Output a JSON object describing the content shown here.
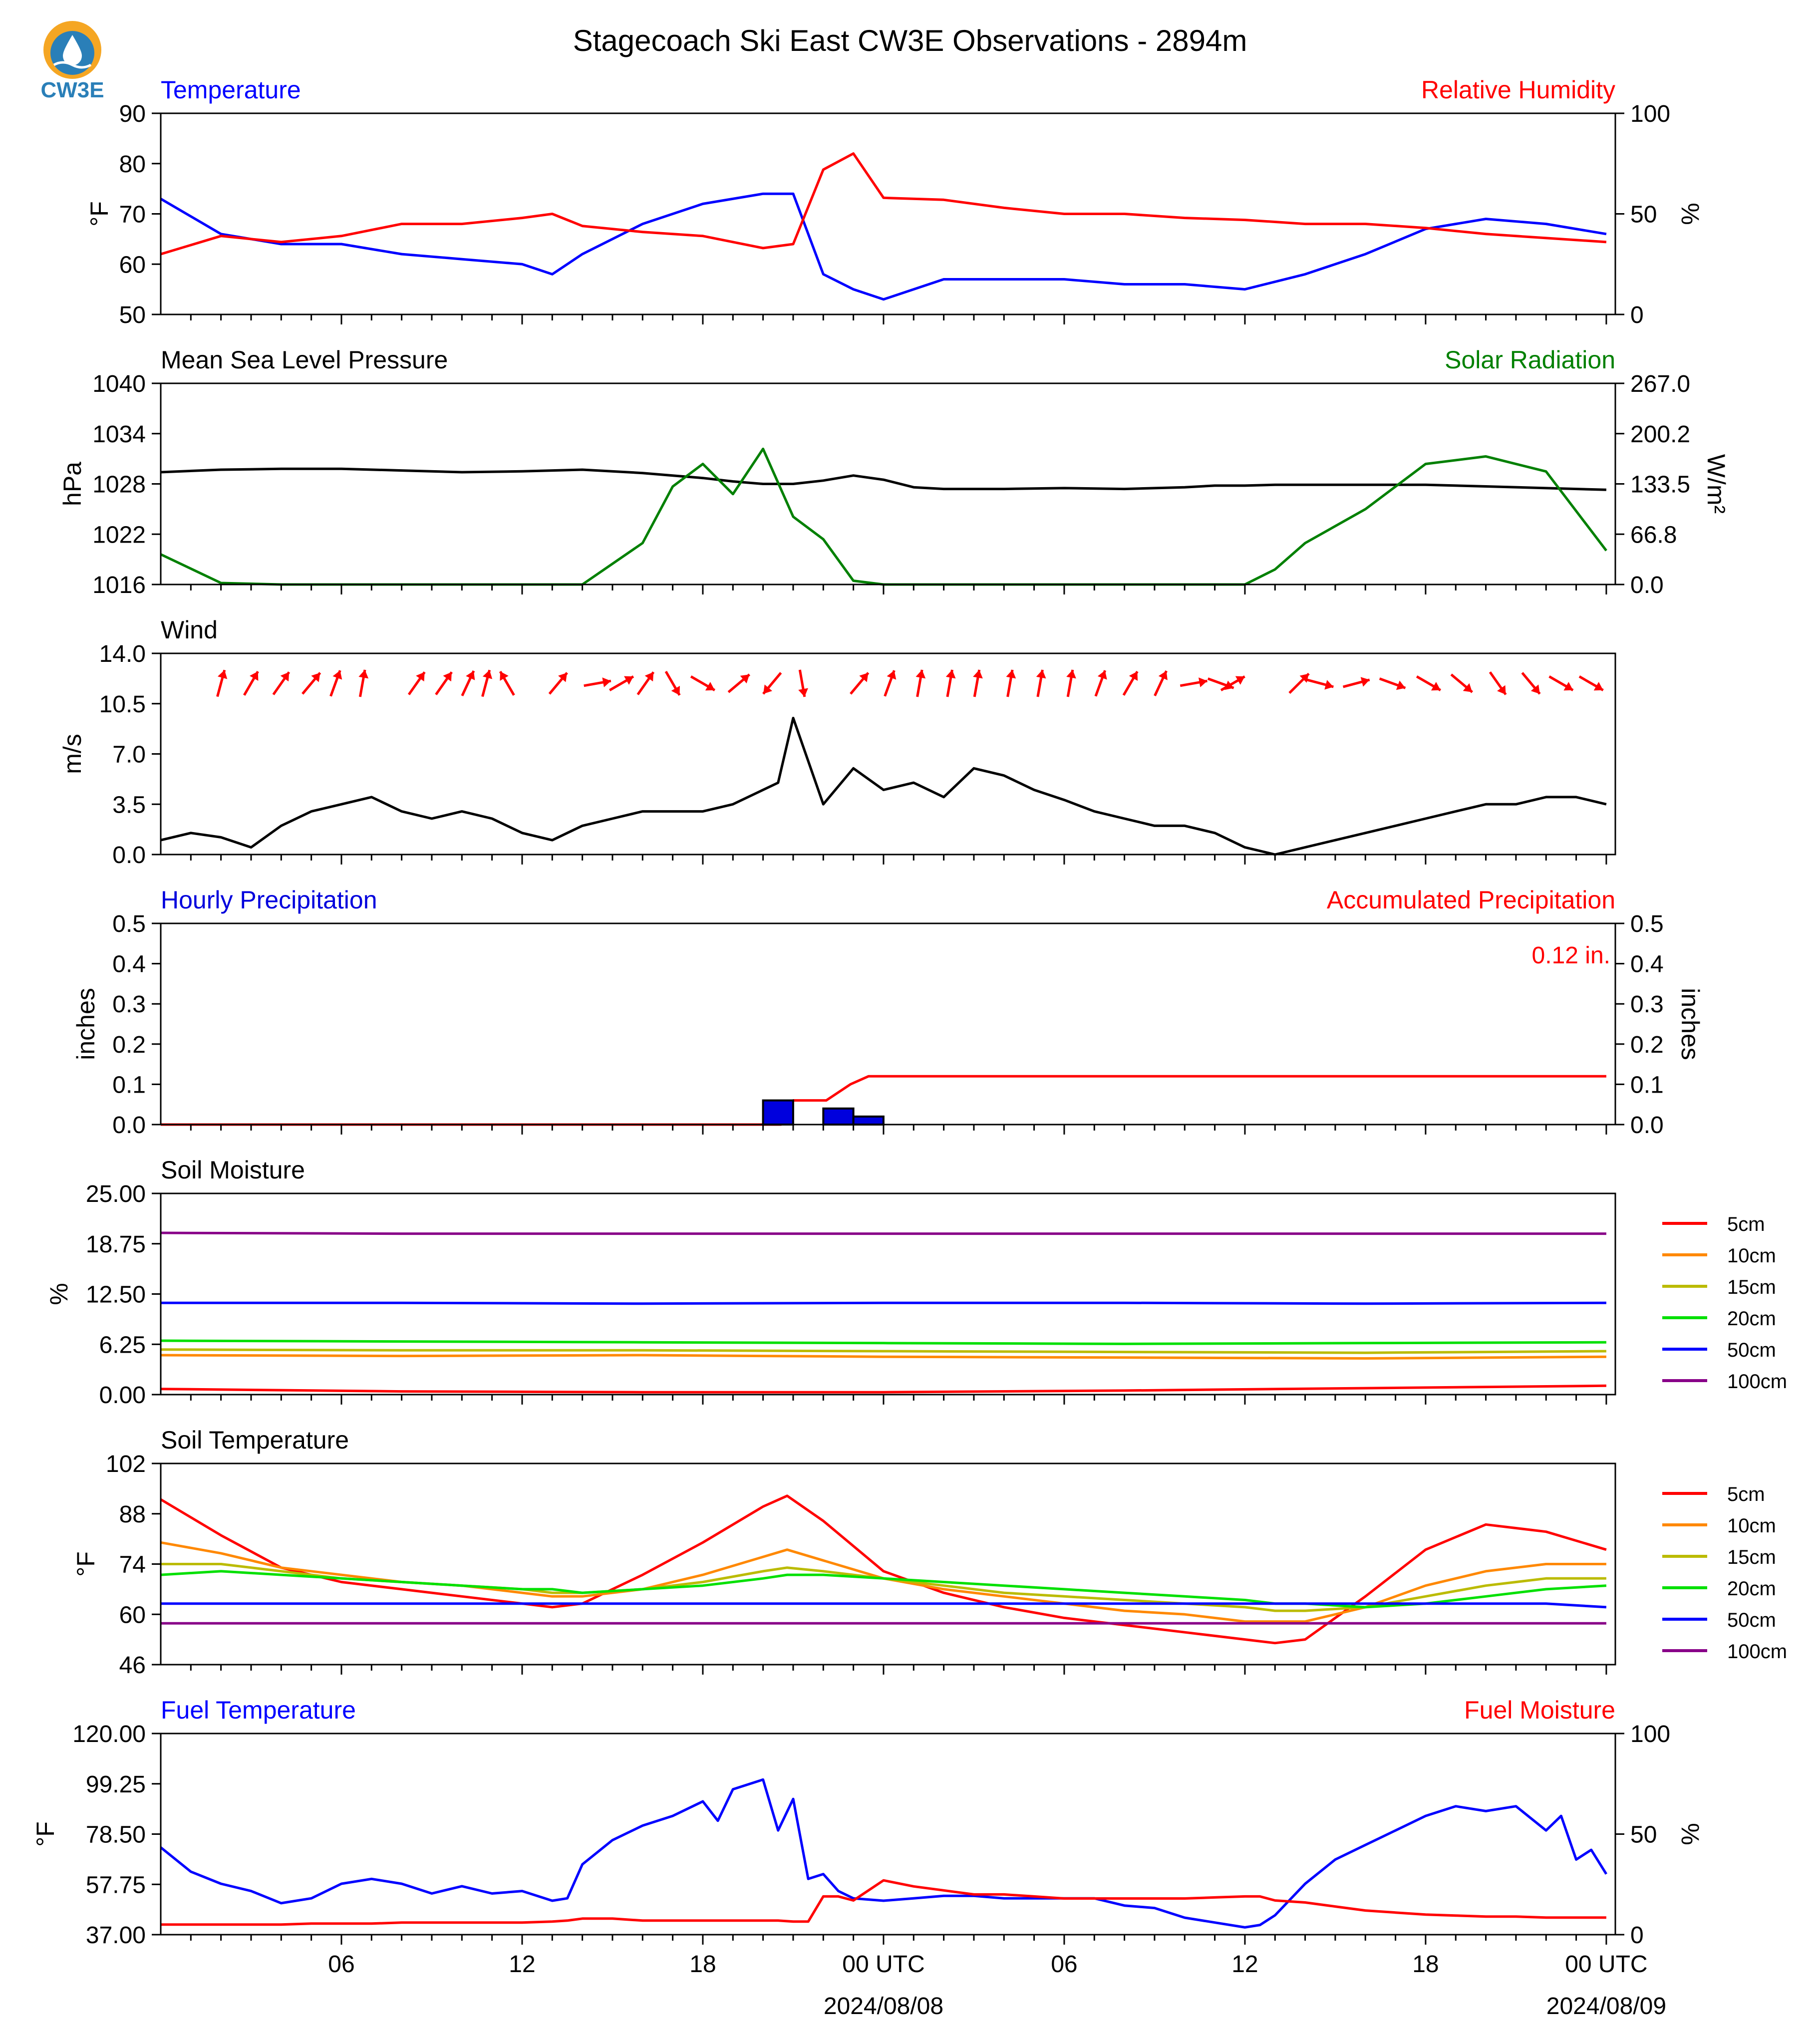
{
  "title": "Stagecoach Ski East CW3E Observations - 2894m",
  "logo": {
    "text": "CW3E",
    "colors": [
      "#f5a623",
      "#2a7fb8"
    ]
  },
  "time_axis": {
    "ticks": [
      "06",
      "12",
      "18",
      "00 UTC",
      "06",
      "12",
      "18",
      "00 UTC"
    ],
    "dates": [
      "2024/08/08",
      "2024/08/09"
    ]
  },
  "chart_data": [
    {
      "type": "line",
      "title_left": "Temperature",
      "title_right": "Relative Humidity",
      "ylabel": "°F",
      "ylabel_right": "%",
      "ylim": [
        50,
        90
      ],
      "ylim_right": [
        0,
        100
      ],
      "yticks": [
        "50",
        "60",
        "70",
        "80",
        "90"
      ],
      "yticks_right": [
        "0",
        "50",
        "100"
      ],
      "colors": {
        "left": "#0000ff",
        "right": "#ff0000"
      },
      "x": [
        0,
        2,
        4,
        6,
        8,
        10,
        12,
        13,
        14,
        16,
        18,
        20,
        21,
        22,
        23,
        24,
        26,
        28,
        30,
        32,
        34,
        36,
        38,
        40,
        42,
        44,
        46,
        48
      ],
      "series": [
        {
          "name": "Temperature",
          "axis": "left",
          "values": [
            73,
            66,
            64,
            64,
            62,
            61,
            60,
            58,
            62,
            68,
            72,
            74,
            74,
            58,
            55,
            53,
            57,
            57,
            57,
            56,
            56,
            55,
            58,
            62,
            67,
            69,
            68,
            66
          ]
        },
        {
          "name": "Relative Humidity",
          "axis": "right",
          "values": [
            30,
            39,
            36,
            39,
            45,
            45,
            48,
            50,
            44,
            41,
            39,
            33,
            35,
            72,
            80,
            58,
            57,
            53,
            50,
            50,
            48,
            47,
            45,
            45,
            43,
            40,
            38,
            36
          ]
        }
      ]
    },
    {
      "type": "line",
      "title_left": "Mean Sea Level Pressure",
      "title_right": "Solar Radiation",
      "ylabel": "hPa",
      "ylabel_right": "W/m²",
      "ylim": [
        1016,
        1040
      ],
      "ylim_right": [
        0,
        267
      ],
      "yticks": [
        "1016",
        "1022",
        "1028",
        "1034",
        "1040"
      ],
      "yticks_right": [
        "0.0",
        "66.8",
        "133.5",
        "200.2",
        "267.0"
      ],
      "colors": {
        "left": "#000000",
        "right": "#008000"
      },
      "x": [
        0,
        2,
        4,
        6,
        8,
        10,
        12,
        14,
        16,
        17,
        18,
        19,
        20,
        21,
        22,
        23,
        24,
        25,
        26,
        28,
        30,
        32,
        34,
        35,
        36,
        37,
        38,
        40,
        42,
        44,
        46,
        48
      ],
      "series": [
        {
          "name": "Mean Sea Level Pressure",
          "axis": "left",
          "values": [
            1029.4,
            1029.7,
            1029.8,
            1029.8,
            1029.6,
            1029.4,
            1029.5,
            1029.7,
            1029.3,
            1029.0,
            1028.7,
            1028.3,
            1028.0,
            1028.0,
            1028.4,
            1029.0,
            1028.5,
            1027.6,
            1027.4,
            1027.4,
            1027.5,
            1027.4,
            1027.6,
            1027.8,
            1027.8,
            1027.9,
            1027.9,
            1027.9,
            1027.9,
            1027.7,
            1027.5,
            1027.3
          ]
        },
        {
          "name": "Solar Radiation",
          "axis": "right",
          "values": [
            40,
            2,
            0,
            0,
            0,
            0,
            0,
            0,
            55,
            130,
            160,
            120,
            180,
            90,
            60,
            5,
            0,
            0,
            0,
            0,
            0,
            0,
            0,
            0,
            0,
            20,
            55,
            100,
            160,
            170,
            150,
            45
          ]
        }
      ]
    },
    {
      "type": "line",
      "title_left": "Wind",
      "ylabel": "m/s",
      "ylim": [
        0,
        14
      ],
      "yticks": [
        "0.0",
        "3.5",
        "7.0",
        "10.5",
        "14.0"
      ],
      "colors": {
        "left": "#000000",
        "arrows": "#ff0000"
      },
      "x": [
        0,
        1,
        2,
        3,
        4,
        5,
        6,
        7,
        8,
        9,
        10,
        11,
        12,
        13,
        14,
        15,
        16,
        17,
        18,
        19,
        20,
        20.5,
        21,
        22,
        23,
        24,
        25,
        26,
        27,
        28,
        29,
        30,
        31,
        32,
        33,
        34,
        35,
        36,
        37,
        38,
        39,
        40,
        41,
        42,
        43,
        44,
        45,
        46,
        47,
        48
      ],
      "series": [
        {
          "name": "Wind Speed",
          "axis": "left",
          "values": [
            1.0,
            1.5,
            1.2,
            0.5,
            2.0,
            3.0,
            3.5,
            4.0,
            3.0,
            2.5,
            3.0,
            2.5,
            1.5,
            1.0,
            2.0,
            2.5,
            3.0,
            3.0,
            3.0,
            3.5,
            4.5,
            5.0,
            9.5,
            3.5,
            6.0,
            4.5,
            5.0,
            4.0,
            6.0,
            5.5,
            4.5,
            3.8,
            3.0,
            2.5,
            2.0,
            2.0,
            1.5,
            0.5,
            0.0,
            0.5,
            1.0,
            1.5,
            2.0,
            2.5,
            3.0,
            3.5,
            3.5,
            4.0,
            4.0,
            3.5
          ]
        }
      ],
      "arrows": {
        "x": [
          2,
          3,
          4,
          5,
          5.8,
          6.7,
          8.5,
          9.4,
          10.2,
          10.8,
          11.5,
          13.2,
          14.5,
          15.3,
          16.1,
          17,
          18,
          19.2,
          20.3,
          21.3,
          23.2,
          24.2,
          25.2,
          26.2,
          27.1,
          28.2,
          29.2,
          30.2,
          31.2,
          32.2,
          33.2,
          34.3,
          35.2,
          35.6,
          37.8,
          38.5,
          39.7,
          40.9,
          42.1,
          43.2,
          44.4,
          45.5,
          46.5,
          47.5
        ],
        "dir_deg": [
          15,
          30,
          35,
          40,
          20,
          10,
          35,
          35,
          25,
          15,
          330,
          40,
          80,
          60,
          35,
          150,
          120,
          50,
          220,
          170,
          40,
          20,
          10,
          10,
          10,
          10,
          10,
          10,
          20,
          30,
          25,
          80,
          110,
          60,
          45,
          105,
          75,
          110,
          120,
          130,
          145,
          140,
          120,
          120
        ]
      }
    },
    {
      "type": "bar",
      "title_left": "Hourly Precipitation",
      "title_right": "Accumulated Precipitation",
      "annotation": "0.12 in.",
      "ylabel": "inches",
      "ylabel_right": "inches",
      "ylim": [
        0,
        0.5
      ],
      "ylim_right": [
        0,
        0.5
      ],
      "yticks": [
        "0.0",
        "0.1",
        "0.2",
        "0.3",
        "0.4",
        "0.5"
      ],
      "yticks_right": [
        "0.0",
        "0.1",
        "0.2",
        "0.3",
        "0.4",
        "0.5"
      ],
      "colors": {
        "bars": "#0000dd",
        "line": "#ff0000"
      },
      "bars": {
        "x": [
          20.5,
          22.5,
          23.5
        ],
        "values": [
          0.06,
          0.04,
          0.02
        ]
      },
      "series": [
        {
          "name": "Accumulated Precipitation",
          "axis": "right",
          "x": [
            0,
            20.6,
            21,
            22.1,
            22.9,
            23.5,
            48
          ],
          "values": [
            0,
            0,
            0.06,
            0.06,
            0.1,
            0.12,
            0.12
          ]
        }
      ]
    },
    {
      "type": "line",
      "title_left": "Soil Moisture",
      "ylabel": "%",
      "ylim": [
        0,
        25
      ],
      "yticks": [
        "0.00",
        "6.25",
        "12.50",
        "18.75",
        "25.00"
      ],
      "legend": [
        "5cm",
        "10cm",
        "15cm",
        "20cm",
        "50cm",
        "100cm"
      ],
      "legend_colors": [
        "#ff0000",
        "#ff8800",
        "#bbbb00",
        "#00e000",
        "#0000ff",
        "#880088"
      ],
      "x": [
        0,
        8,
        16,
        24,
        32,
        40,
        48
      ],
      "series": [
        {
          "name": "5cm",
          "values": [
            0.7,
            0.4,
            0.3,
            0.3,
            0.5,
            0.8,
            1.1
          ]
        },
        {
          "name": "10cm",
          "values": [
            4.9,
            4.8,
            4.9,
            4.7,
            4.6,
            4.5,
            4.7
          ]
        },
        {
          "name": "15cm",
          "values": [
            5.6,
            5.5,
            5.5,
            5.4,
            5.3,
            5.2,
            5.4
          ]
        },
        {
          "name": "20cm",
          "values": [
            6.7,
            6.6,
            6.5,
            6.4,
            6.3,
            6.4,
            6.5
          ]
        },
        {
          "name": "50cm",
          "values": [
            11.4,
            11.4,
            11.3,
            11.4,
            11.4,
            11.3,
            11.4
          ]
        },
        {
          "name": "100cm",
          "values": [
            20.1,
            20.0,
            20.0,
            20.0,
            20.0,
            20.0,
            20.0
          ]
        }
      ]
    },
    {
      "type": "line",
      "title_left": "Soil Temperature",
      "ylabel": "°F",
      "ylim": [
        46,
        102
      ],
      "yticks": [
        "46",
        "60",
        "74",
        "88",
        "102"
      ],
      "legend": [
        "5cm",
        "10cm",
        "15cm",
        "20cm",
        "50cm",
        "100cm"
      ],
      "legend_colors": [
        "#ff0000",
        "#ff8800",
        "#bbbb00",
        "#00e000",
        "#0000ff",
        "#880088"
      ],
      "x": [
        0,
        2,
        4,
        6,
        8,
        10,
        12,
        13,
        14,
        16,
        18,
        20,
        20.8,
        22,
        24,
        26,
        28,
        30,
        32,
        34,
        36,
        37,
        38,
        40,
        42,
        44,
        46,
        48
      ],
      "series": [
        {
          "name": "5cm",
          "values": [
            92,
            82,
            73,
            69,
            67,
            65,
            63,
            62,
            63,
            71,
            80,
            90,
            93,
            86,
            72,
            66,
            62,
            59,
            57,
            55,
            53,
            52,
            53,
            65,
            78,
            85,
            83,
            78
          ]
        },
        {
          "name": "10cm",
          "values": [
            80,
            77,
            73,
            71,
            69,
            68,
            66,
            65,
            65,
            67,
            71,
            76,
            78,
            75,
            70,
            67,
            65,
            63,
            61,
            60,
            58,
            58,
            58,
            62,
            68,
            72,
            74,
            74
          ]
        },
        {
          "name": "15cm",
          "values": [
            74,
            74,
            72,
            70,
            69,
            68,
            67,
            66,
            66,
            67,
            69,
            72,
            73,
            72,
            70,
            68,
            66,
            65,
            64,
            63,
            62,
            61,
            61,
            62,
            65,
            68,
            70,
            70
          ]
        },
        {
          "name": "20cm",
          "values": [
            71,
            72,
            71,
            70,
            69,
            68,
            67,
            67,
            66,
            67,
            68,
            70,
            71,
            71,
            70,
            69,
            68,
            67,
            66,
            65,
            64,
            63,
            63,
            62,
            63,
            65,
            67,
            68
          ]
        },
        {
          "name": "50cm",
          "values": [
            63,
            63,
            63,
            63,
            63,
            63,
            63,
            63,
            63,
            63,
            63,
            63,
            63,
            63,
            63,
            63,
            63,
            63,
            63,
            63,
            63,
            63,
            63,
            63,
            63,
            63,
            63,
            62
          ]
        },
        {
          "name": "100cm",
          "values": [
            57.5,
            57.5,
            57.5,
            57.5,
            57.5,
            57.5,
            57.5,
            57.5,
            57.5,
            57.5,
            57.5,
            57.5,
            57.5,
            57.5,
            57.5,
            57.5,
            57.5,
            57.5,
            57.5,
            57.5,
            57.5,
            57.5,
            57.5,
            57.5,
            57.5,
            57.5,
            57.5,
            57.5
          ]
        }
      ]
    },
    {
      "type": "line",
      "title_left": "Fuel Temperature",
      "title_right": "Fuel Moisture",
      "ylabel": "°F",
      "ylabel_right": "%",
      "ylim": [
        37,
        120
      ],
      "ylim_right": [
        0,
        100
      ],
      "yticks": [
        "37.00",
        "57.75",
        "78.50",
        "99.25",
        "120.00"
      ],
      "yticks_right": [
        "0",
        "50",
        "100"
      ],
      "colors": {
        "left": "#0000ff",
        "right": "#ff0000"
      },
      "x": [
        0,
        1,
        2,
        3,
        4,
        5,
        6,
        7,
        8,
        9,
        10,
        11,
        12,
        13,
        13.5,
        14,
        15,
        16,
        17,
        18,
        18.5,
        19,
        20,
        20.5,
        21,
        21.5,
        22,
        22.5,
        23,
        24,
        25,
        26,
        27,
        28,
        29,
        30,
        31,
        32,
        33,
        34,
        35,
        36,
        36.5,
        37,
        38,
        39,
        40,
        41,
        42,
        43,
        44,
        45,
        46,
        46.5,
        47,
        47.5,
        48
      ],
      "series": [
        {
          "name": "Fuel Temperature",
          "axis": "left",
          "values": [
            73,
            63,
            58,
            55,
            50,
            52,
            58,
            60,
            58,
            54,
            57,
            54,
            55,
            51,
            52,
            66,
            76,
            82,
            86,
            92,
            84,
            97,
            101,
            80,
            93,
            60,
            62,
            55,
            52,
            51,
            52,
            53,
            53,
            52,
            52,
            52,
            52,
            49,
            48,
            44,
            42,
            40,
            41,
            45,
            58,
            68,
            74,
            80,
            86,
            90,
            88,
            90,
            80,
            86,
            68,
            72,
            62
          ]
        },
        {
          "name": "Fuel Moisture",
          "axis": "right",
          "values": [
            5,
            5,
            5,
            5,
            5,
            5.5,
            5.5,
            5.5,
            6,
            6,
            6,
            6,
            6,
            6.5,
            7,
            8,
            8,
            7,
            7,
            7,
            7,
            7,
            7,
            7,
            6.5,
            6.5,
            19,
            19,
            17,
            27,
            24,
            22,
            20,
            20,
            19,
            18,
            18,
            18,
            18,
            18,
            18.5,
            19,
            19,
            17,
            16,
            14,
            12,
            11,
            10,
            9.5,
            9,
            9,
            8.5,
            8.5,
            8.5,
            8.5,
            8.5
          ]
        }
      ]
    }
  ]
}
